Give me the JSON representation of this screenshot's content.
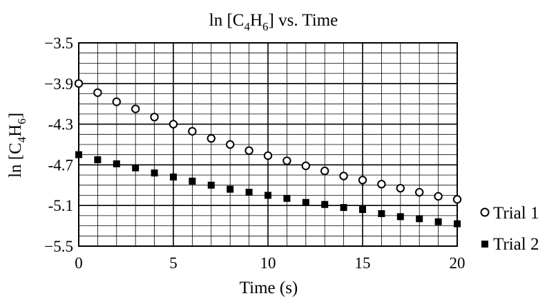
{
  "chart_data": {
    "type": "scatter",
    "title": {
      "pre": "ln [C",
      "sub1": "4",
      "mid": "H",
      "sub2": "6",
      "post": "] vs. Time"
    },
    "xlabel": "Time (s)",
    "ylabel": {
      "pre": "ln [C",
      "sub1": "4",
      "mid": "H",
      "sub2": "6",
      "post": "]"
    },
    "xlim": [
      0,
      20
    ],
    "ylim": [
      -5.5,
      -3.5
    ],
    "x_ticks": [
      0,
      5,
      10,
      15,
      20
    ],
    "x_tick_labels": [
      "0",
      "5",
      "10",
      "15",
      "20"
    ],
    "y_ticks": [
      -3.5,
      -3.9,
      -4.3,
      -4.7,
      -5.1,
      -5.5
    ],
    "y_tick_labels": [
      "−3.5",
      "−3.9",
      "-4.3",
      "-4.7",
      "-5.1",
      "−5.5"
    ],
    "grid": true,
    "legend_position": "right",
    "series": [
      {
        "name": "Trial 1",
        "marker": "open-circle",
        "x": [
          0,
          1,
          2,
          3,
          4,
          5,
          6,
          7,
          8,
          9,
          10,
          11,
          12,
          13,
          14,
          15,
          16,
          17,
          18,
          19,
          20
        ],
        "y": [
          -3.9,
          -3.99,
          -4.08,
          -4.15,
          -4.23,
          -4.3,
          -4.37,
          -4.44,
          -4.5,
          -4.56,
          -4.61,
          -4.66,
          -4.71,
          -4.76,
          -4.81,
          -4.85,
          -4.89,
          -4.93,
          -4.97,
          -5.01,
          -5.04
        ]
      },
      {
        "name": "Trial 2",
        "marker": "filled-square",
        "x": [
          0,
          1,
          2,
          3,
          4,
          5,
          6,
          7,
          8,
          9,
          10,
          11,
          12,
          13,
          14,
          15,
          16,
          17,
          18,
          19,
          20
        ],
        "y": [
          -4.6,
          -4.65,
          -4.69,
          -4.73,
          -4.78,
          -4.82,
          -4.86,
          -4.9,
          -4.94,
          -4.97,
          -5.0,
          -5.03,
          -5.07,
          -5.09,
          -5.12,
          -5.14,
          -5.18,
          -5.21,
          -5.23,
          -5.26,
          -5.28
        ]
      }
    ]
  }
}
